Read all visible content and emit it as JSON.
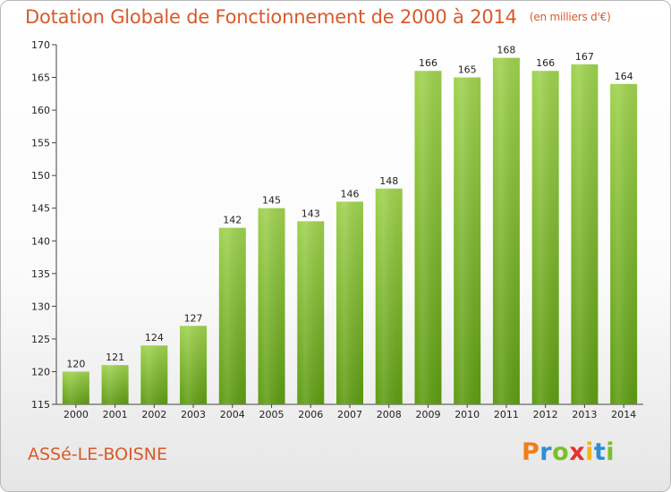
{
  "header": {
    "title": "Dotation Globale de Fonctionnement de 2000 à 2014",
    "unit": "(en milliers d'€)"
  },
  "footer": {
    "commune": "ASSé-LE-BOISNE",
    "brand_letters": [
      "P",
      "r",
      "o",
      "x",
      "i",
      "t",
      "i"
    ],
    "brand_colors": [
      "#f07e1b",
      "#2c8fd5",
      "#7bbf2a",
      "#e8312f",
      "#f6b51a",
      "#2c8fd5",
      "#7bbf2a"
    ]
  },
  "chart_data": {
    "type": "bar",
    "categories": [
      "2000",
      "2001",
      "2002",
      "2003",
      "2004",
      "2005",
      "2006",
      "2007",
      "2008",
      "2009",
      "2010",
      "2011",
      "2012",
      "2013",
      "2014"
    ],
    "values": [
      120,
      121,
      124,
      127,
      142,
      145,
      143,
      146,
      148,
      166,
      165,
      168,
      166,
      167,
      164
    ],
    "ylim": [
      115,
      170
    ],
    "yticks": [
      115,
      120,
      125,
      130,
      135,
      140,
      145,
      150,
      155,
      160,
      165,
      170
    ],
    "grid": false,
    "bar_color": "#7ec234"
  }
}
